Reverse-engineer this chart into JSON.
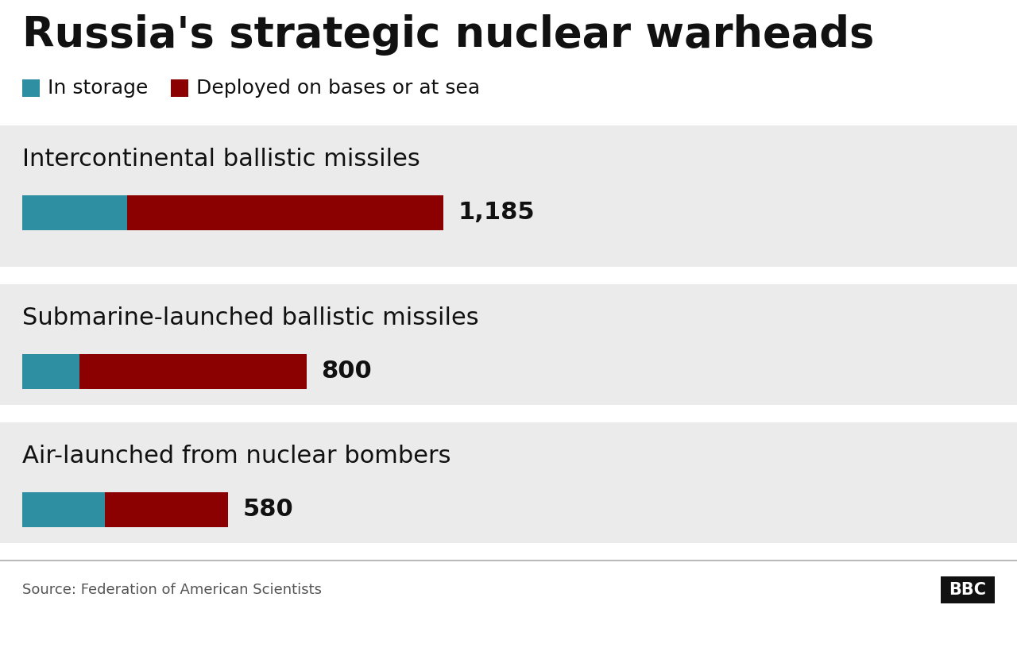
{
  "title": "Russia's strategic nuclear warheads",
  "legend_storage": "In storage",
  "legend_deployed": "Deployed on bases or at sea",
  "color_storage": "#2e8fa3",
  "color_deployed": "#8b0000",
  "bg_gray": "#ebebeb",
  "bg_white": "#ffffff",
  "categories": [
    "Intercontinental ballistic missiles",
    "Submarine-launched ballistic missiles",
    "Air-launched from nuclear bombers"
  ],
  "totals": [
    "1,185",
    "800",
    "580"
  ],
  "storage_values": [
    296,
    160,
    232
  ],
  "deployed_values": [
    889,
    640,
    348
  ],
  "source": "Source: Federation of American Scientists",
  "bbc_text": "BBC",
  "fig_width": 12.8,
  "fig_height": 8.25,
  "dpi": 100
}
